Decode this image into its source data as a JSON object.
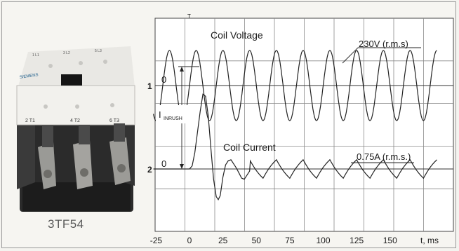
{
  "photo": {
    "caption": "3TF54",
    "brand": "SIEMENS",
    "terminals_top": [
      "1 L1",
      "3 L2",
      "5 L3"
    ],
    "terminals_bottom": [
      "2 T1",
      "4 T2",
      "6 T3"
    ]
  },
  "chart_data": {
    "type": "line",
    "xlabel": "t, ms",
    "x_ticks": [
      -25,
      0,
      25,
      50,
      75,
      100,
      125,
      150
    ],
    "xlim": [
      -27,
      185
    ],
    "markers": {
      "channel_1": "1",
      "channel_2": "2",
      "trigger": "T"
    },
    "series": [
      {
        "name": "Coil Voltage",
        "zero_label": "0",
        "rms_label": "230V (r.m.s)",
        "frequency_hz": 50,
        "phase_deg": 0,
        "amplitude": 325,
        "unit": "V"
      },
      {
        "name": "Coil Current",
        "zero_label": "0",
        "rms_label": "0.75A (r.m.s.)",
        "annotation_main": "I",
        "annotation_sub": "INRUSH",
        "points": [
          [
            -27,
            0
          ],
          [
            0,
            0
          ],
          [
            2,
            0.3
          ],
          [
            4,
            1.6
          ],
          [
            6,
            3.6
          ],
          [
            8,
            5.6
          ],
          [
            10,
            7.3
          ],
          [
            12,
            7.1
          ],
          [
            14,
            5.2
          ],
          [
            16,
            2.0
          ],
          [
            18,
            -1.0
          ],
          [
            20,
            -2.7
          ],
          [
            21.5,
            -3.0
          ],
          [
            23,
            -2.6
          ],
          [
            25,
            -0.8
          ],
          [
            27,
            0.4
          ],
          [
            29,
            0.8
          ],
          [
            31,
            0.9
          ],
          [
            33,
            0.5
          ],
          [
            35,
            0.1
          ],
          [
            37,
            -0.4
          ],
          [
            39,
            -0.9
          ],
          [
            41,
            -1.0
          ],
          [
            43,
            -0.6
          ],
          [
            45,
            -0.2
          ]
        ],
        "steady_amplitude": 1.06,
        "steady_from_ms": 45,
        "unit": "A"
      }
    ]
  }
}
